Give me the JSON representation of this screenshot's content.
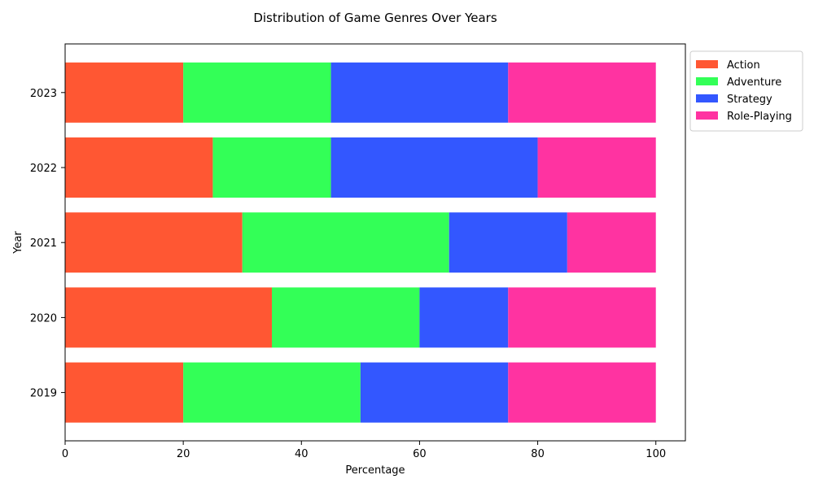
{
  "chart_data": {
    "type": "bar",
    "orientation": "horizontal",
    "stacked": true,
    "title": "Distribution of Game Genres Over Years",
    "xlabel": "Percentage",
    "ylabel": "Year",
    "categories": [
      "2019",
      "2020",
      "2021",
      "2022",
      "2023"
    ],
    "xlim": [
      0,
      105
    ],
    "xticks": [
      0,
      20,
      40,
      60,
      80,
      100
    ],
    "grid": false,
    "legend_position": "outside-top-right",
    "series": [
      {
        "name": "Action",
        "color": "#FF5733",
        "values": [
          20,
          35,
          30,
          25,
          20
        ]
      },
      {
        "name": "Adventure",
        "color": "#33FF57",
        "values": [
          30,
          25,
          35,
          20,
          25
        ]
      },
      {
        "name": "Strategy",
        "color": "#3357FF",
        "values": [
          25,
          15,
          20,
          35,
          30
        ]
      },
      {
        "name": "Role-Playing",
        "color": "#FF33A1",
        "values": [
          25,
          25,
          15,
          20,
          25
        ]
      }
    ]
  }
}
